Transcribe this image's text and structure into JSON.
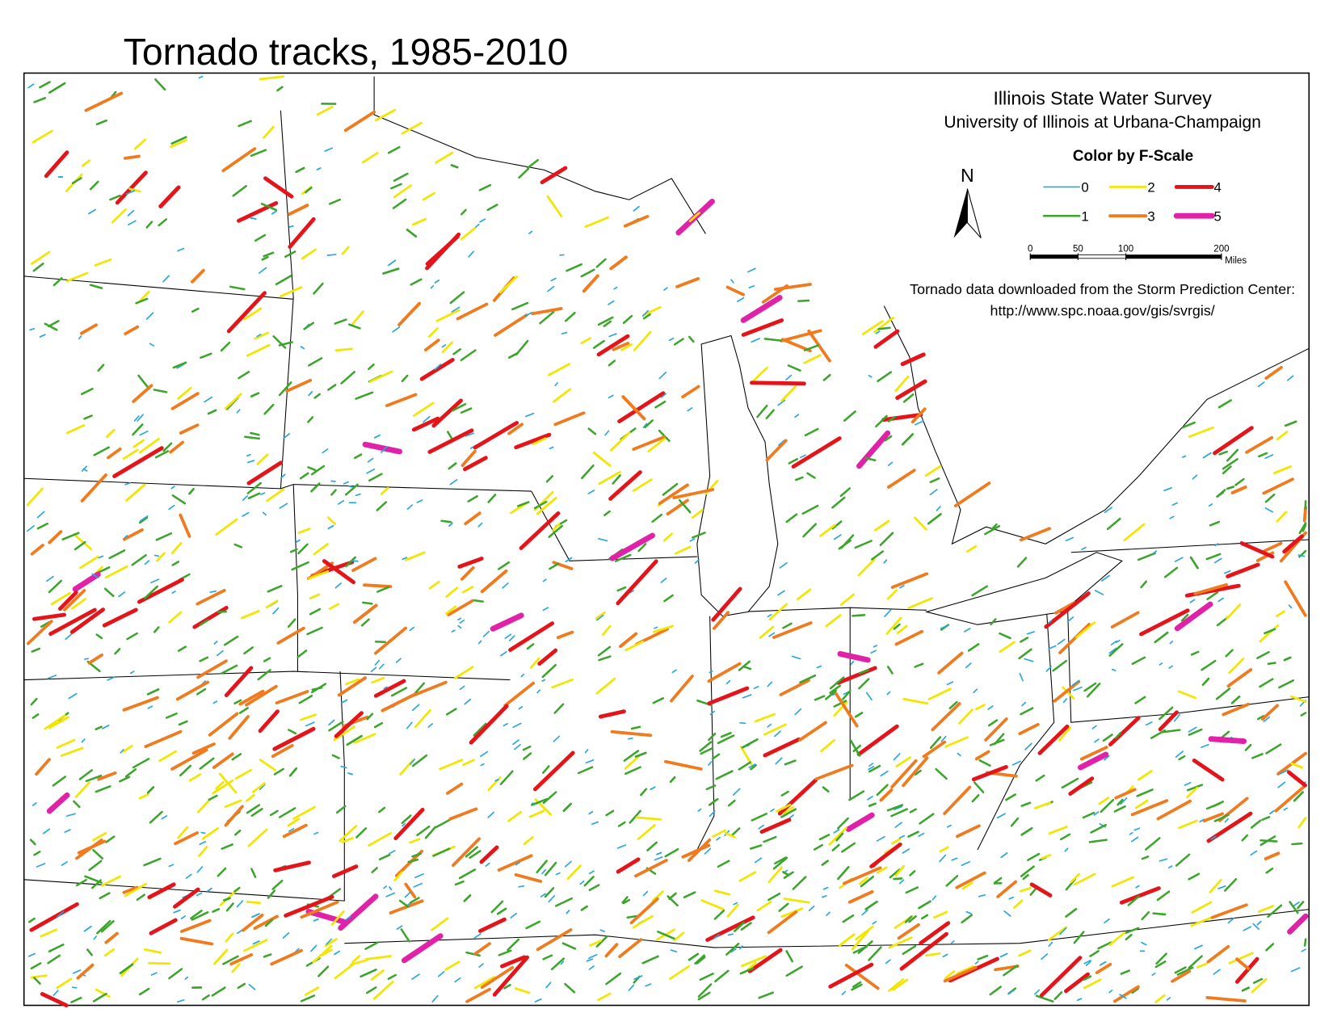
{
  "header": {
    "title": "Tornado tracks, 1985-2010"
  },
  "credits": {
    "organization": "Illinois State Water Survey",
    "university": "University of Illinois at Urbana-Champaign"
  },
  "north_arrow": {
    "label": "N"
  },
  "legend": {
    "title": "Color by F-Scale",
    "items": [
      {
        "label": "0",
        "color": "#2aa7dd"
      },
      {
        "label": "1",
        "color": "#3aa52a"
      },
      {
        "label": "2",
        "color": "#f2e600"
      },
      {
        "label": "3",
        "color": "#f07a1e"
      },
      {
        "label": "4",
        "color": "#e3151b"
      },
      {
        "label": "5",
        "color": "#e022a8"
      }
    ]
  },
  "scale_bar": {
    "ticks": [
      0,
      50,
      100,
      200
    ],
    "unit": "Miles"
  },
  "source": {
    "line1": "Tornado data downloaded from the Storm Prediction Center:",
    "line2": "http://www.spc.noaa.gov/gis/svrgis/"
  }
}
